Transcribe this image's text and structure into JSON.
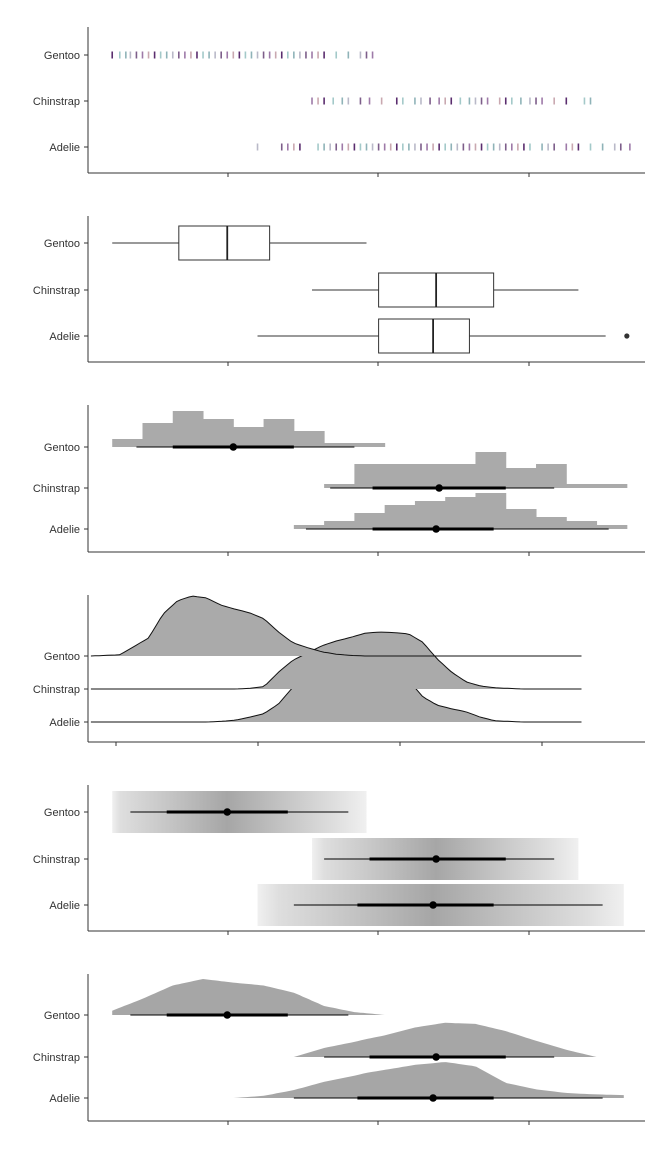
{
  "chart_data": [
    {
      "panel": 1,
      "type": "strip",
      "categories": [
        "Gentoo",
        "Chinstrap",
        "Adelie"
      ],
      "series": [
        {
          "name": "Gentoo",
          "values": [
            0.0,
            0.25,
            0.45,
            0.6,
            0.8,
            1.0,
            1.2,
            1.4,
            1.6,
            1.8,
            2.0,
            2.2,
            2.4,
            2.6,
            2.8,
            3.0,
            3.2,
            3.4,
            3.6,
            3.8,
            4.0,
            4.2,
            4.4,
            4.6,
            4.8,
            5.0,
            5.2,
            5.4,
            5.6,
            5.8,
            6.0,
            6.2,
            6.4,
            6.6,
            6.8,
            7.0,
            7.4,
            7.8,
            8.2,
            8.4,
            8.6
          ]
        },
        {
          "name": "Chinstrap",
          "values": [
            6.6,
            6.8,
            7.0,
            7.3,
            7.6,
            7.8,
            8.2,
            8.5,
            8.9,
            9.4,
            9.6,
            10.0,
            10.2,
            10.5,
            10.8,
            11.0,
            11.2,
            11.5,
            11.8,
            12.0,
            12.2,
            12.4,
            12.8,
            13.0,
            13.2,
            13.5,
            13.8,
            14.0,
            14.2,
            14.6,
            15.0,
            15.6,
            15.8
          ]
        },
        {
          "name": "Adelie",
          "values": [
            4.8,
            5.6,
            5.8,
            6.0,
            6.2,
            6.8,
            7.0,
            7.2,
            7.4,
            7.6,
            7.8,
            8.0,
            8.2,
            8.4,
            8.6,
            8.8,
            9.0,
            9.2,
            9.4,
            9.6,
            9.8,
            10.0,
            10.2,
            10.4,
            10.6,
            10.8,
            11.0,
            11.2,
            11.4,
            11.6,
            11.8,
            12.0,
            12.2,
            12.4,
            12.6,
            12.8,
            13.0,
            13.2,
            13.4,
            13.6,
            13.8,
            14.2,
            14.4,
            14.6,
            15.0,
            15.2,
            15.4,
            15.8,
            16.2,
            16.6,
            16.8,
            17.1
          ]
        }
      ],
      "xlim": [
        -0.8,
        17.6
      ]
    },
    {
      "panel": 2,
      "type": "boxplot",
      "categories": [
        "Gentoo",
        "Chinstrap",
        "Adelie"
      ],
      "series": [
        {
          "name": "Gentoo",
          "whisker_low": 0.0,
          "q1": 2.2,
          "median": 3.8,
          "q3": 5.2,
          "whisker_high": 8.4,
          "outliers": []
        },
        {
          "name": "Chinstrap",
          "whisker_low": 6.6,
          "q1": 8.8,
          "median": 10.7,
          "q3": 12.6,
          "whisker_high": 15.4,
          "outliers": []
        },
        {
          "name": "Adelie",
          "whisker_low": 4.8,
          "q1": 8.8,
          "median": 10.6,
          "q3": 11.8,
          "whisker_high": 16.3,
          "outliers": [
            17.0
          ]
        }
      ],
      "xlim": [
        -0.8,
        17.6
      ]
    },
    {
      "panel": 3,
      "type": "histogram_interval",
      "categories": [
        "Gentoo",
        "Chinstrap",
        "Adelie"
      ],
      "bin_edges": [
        0,
        1,
        2,
        3,
        4,
        5,
        6,
        7,
        8,
        9,
        10,
        11,
        12,
        13,
        14,
        15,
        16,
        17
      ],
      "series": [
        {
          "name": "Gentoo",
          "counts": [
            2,
            6,
            9,
            7,
            5,
            7,
            4,
            1,
            1,
            0,
            0,
            0,
            0,
            0,
            0,
            0,
            0
          ],
          "point": 4.0,
          "inner": [
            2.0,
            6.0
          ],
          "outer": [
            0.8,
            8.0
          ]
        },
        {
          "name": "Chinstrap",
          "counts": [
            0,
            0,
            0,
            0,
            0,
            0,
            0,
            1,
            6,
            6,
            6,
            6,
            9,
            5,
            6,
            1,
            1
          ],
          "point": 10.8,
          "inner": [
            8.6,
            13.0
          ],
          "outer": [
            7.2,
            14.6
          ]
        },
        {
          "name": "Adelie",
          "counts": [
            0,
            0,
            0,
            0,
            0,
            0,
            1,
            2,
            4,
            6,
            7,
            8,
            9,
            5,
            3,
            2,
            1
          ],
          "point": 10.7,
          "inner": [
            8.6,
            12.6
          ],
          "outer": [
            6.4,
            16.4
          ]
        }
      ],
      "xlim": [
        -0.8,
        17.6
      ]
    },
    {
      "panel": 4,
      "type": "ridgeline",
      "categories": [
        "Gentoo",
        "Chinstrap",
        "Adelie"
      ],
      "x": [
        0,
        1,
        2,
        2.5,
        3,
        3.5,
        4,
        4.5,
        5,
        5.5,
        6,
        6.5,
        7,
        7.5,
        8,
        8.5,
        9,
        9.5,
        10,
        10.5,
        11,
        11.5,
        12,
        12.5,
        13,
        13.5,
        14,
        14.5,
        15,
        16,
        17
      ],
      "series": [
        {
          "name": "Gentoo",
          "values": [
            0,
            0.02,
            0.3,
            0.7,
            0.92,
            1.0,
            0.97,
            0.85,
            0.78,
            0.72,
            0.62,
            0.4,
            0.22,
            0.14,
            0.07,
            0.03,
            0.01,
            0,
            0,
            0,
            0,
            0,
            0,
            0,
            0,
            0,
            0,
            0,
            0,
            0,
            0
          ]
        },
        {
          "name": "Chinstrap",
          "values": [
            0,
            0,
            0,
            0,
            0,
            0,
            0,
            0,
            0,
            0.01,
            0.04,
            0.28,
            0.48,
            0.6,
            0.72,
            0.8,
            0.86,
            0.93,
            0.95,
            0.94,
            0.92,
            0.78,
            0.5,
            0.28,
            0.12,
            0.05,
            0.02,
            0.01,
            0,
            0,
            0
          ]
        },
        {
          "name": "Adelie",
          "values": [
            0,
            0,
            0,
            0,
            0,
            0,
            0,
            0.01,
            0.03,
            0.08,
            0.14,
            0.3,
            0.58,
            0.82,
            0.9,
            1.0,
            1.08,
            1.15,
            1.2,
            1.05,
            0.7,
            0.42,
            0.28,
            0.22,
            0.17,
            0.08,
            0.02,
            0.01,
            0,
            0,
            0
          ]
        }
      ],
      "xlim": [
        -0.1,
        19.2
      ]
    },
    {
      "panel": 5,
      "type": "gradient_interval",
      "categories": [
        "Gentoo",
        "Chinstrap",
        "Adelie"
      ],
      "series": [
        {
          "name": "Gentoo",
          "range": [
            0.0,
            8.4
          ],
          "point": 3.8,
          "inner": [
            1.8,
            5.8
          ],
          "outer": [
            0.6,
            7.8
          ]
        },
        {
          "name": "Chinstrap",
          "range": [
            6.6,
            15.4
          ],
          "point": 10.7,
          "inner": [
            8.5,
            13.0
          ],
          "outer": [
            7.0,
            14.6
          ]
        },
        {
          "name": "Adelie",
          "range": [
            4.8,
            16.9
          ],
          "point": 10.6,
          "inner": [
            8.1,
            12.6
          ],
          "outer": [
            6.0,
            16.2
          ]
        }
      ],
      "xlim": [
        -0.8,
        17.6
      ]
    },
    {
      "panel": 6,
      "type": "halfeye",
      "categories": [
        "Gentoo",
        "Chinstrap",
        "Adelie"
      ],
      "x": [
        0,
        1,
        2,
        3,
        4,
        5,
        6,
        7,
        8,
        8.4,
        9,
        10,
        11,
        12,
        13,
        14,
        15,
        15.4,
        16,
        16.9
      ],
      "series": [
        {
          "name": "Gentoo",
          "values": [
            0.12,
            0.45,
            0.82,
            1.0,
            0.9,
            0.82,
            0.62,
            0.25,
            0.08,
            0.05,
            0,
            0,
            0,
            0,
            0,
            0,
            0,
            0,
            0,
            0
          ],
          "point": 3.8,
          "inner": [
            1.8,
            5.8
          ],
          "outer": [
            0.6,
            7.8
          ]
        },
        {
          "name": "Chinstrap",
          "values": [
            0,
            0,
            0,
            0,
            0,
            0,
            0,
            0.25,
            0.42,
            0.5,
            0.6,
            0.82,
            0.95,
            0.92,
            0.72,
            0.45,
            0.2,
            0.12,
            0,
            0
          ],
          "point": 10.7,
          "inner": [
            8.5,
            13.0
          ],
          "outer": [
            7.0,
            14.6
          ]
        },
        {
          "name": "Adelie",
          "values": [
            0,
            0,
            0,
            0,
            0,
            0.06,
            0.22,
            0.45,
            0.62,
            0.7,
            0.78,
            0.92,
            1.0,
            0.88,
            0.42,
            0.24,
            0.14,
            0.12,
            0.1,
            0.08
          ],
          "point": 10.6,
          "inner": [
            8.1,
            12.6
          ],
          "outer": [
            6.0,
            16.2
          ]
        }
      ],
      "xlim": [
        -0.8,
        17.6
      ]
    }
  ]
}
